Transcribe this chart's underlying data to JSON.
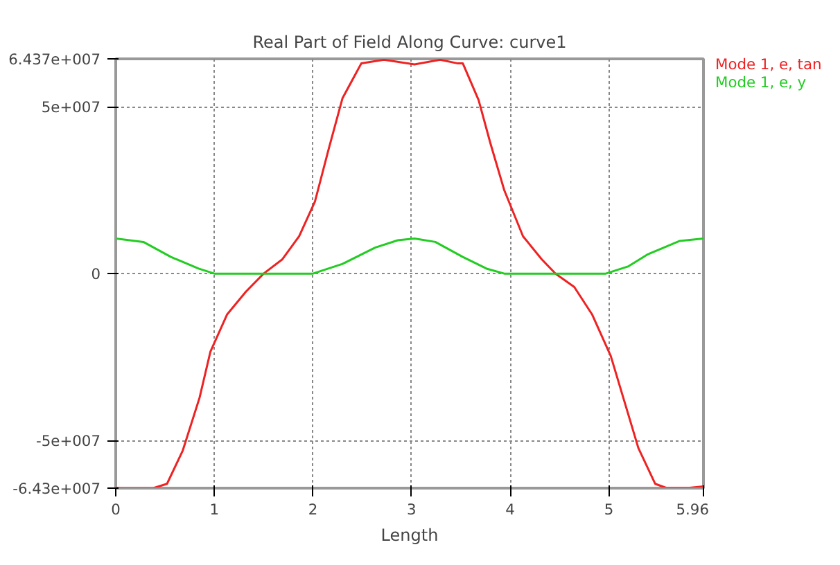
{
  "chart_data": {
    "type": "line",
    "title": "Real Part of Field Along Curve: curve1",
    "xlabel": "Length",
    "xlim": [
      0,
      5.96
    ],
    "ylim": [
      -64300000,
      64370000
    ],
    "xticks": [
      0,
      1,
      2,
      3,
      4,
      5,
      5.96
    ],
    "yticks": [
      {
        "value": -64300000,
        "label": "-6.43e+007"
      },
      {
        "value": -50000000,
        "label": "-5e+007"
      },
      0,
      {
        "value": 50000000,
        "label": "5e+007"
      },
      {
        "value": 64370000,
        "label": "6.437e+007"
      }
    ],
    "grid": true,
    "line_style": "solid",
    "marker": "none",
    "series": [
      {
        "name": "Mode 1, e, tan",
        "color": "#ee2222",
        "x": [
          0,
          0.06,
          0.38,
          0.52,
          0.68,
          0.85,
          0.96,
          1.13,
          1.32,
          1.5,
          1.69,
          1.86,
          2.02,
          2.16,
          2.3,
          2.49,
          2.72,
          3.03,
          3.29,
          3.47,
          3.52,
          3.68,
          3.8,
          3.94,
          4.13,
          4.32,
          4.46,
          4.65,
          4.83,
          5.02,
          5.16,
          5.3,
          5.47,
          5.58,
          5.82,
          5.96
        ],
        "values": [
          -64200000,
          -64300000,
          -64300000,
          -63000000,
          -53000000,
          -37200000,
          -23400000,
          -12200000,
          -5400000,
          0,
          4300000,
          11200000,
          21600000,
          37400000,
          52600000,
          63000000,
          64100000,
          62700000,
          64100000,
          63000000,
          63000000,
          52000000,
          39000000,
          25000000,
          11200000,
          4300000,
          0,
          -4000000,
          -12200000,
          -24700000,
          -38500000,
          -52300000,
          -63000000,
          -64200000,
          -64200000,
          -63800000
        ]
      },
      {
        "name": "Mode 1, e, y",
        "color": "#22cc22",
        "x": [
          0,
          0.28,
          0.56,
          0.84,
          1.0,
          2.0,
          2.3,
          2.63,
          2.86,
          3.03,
          3.24,
          3.52,
          3.76,
          3.94,
          4.97,
          5.2,
          5.39,
          5.72,
          5.96
        ],
        "values": [
          10500000,
          9500000,
          5000000,
          1500000,
          0,
          0,
          2900000,
          7800000,
          10000000,
          10500000,
          9500000,
          5000000,
          1500000,
          0,
          0,
          2200000,
          5700000,
          9800000,
          10500000
        ]
      }
    ]
  }
}
